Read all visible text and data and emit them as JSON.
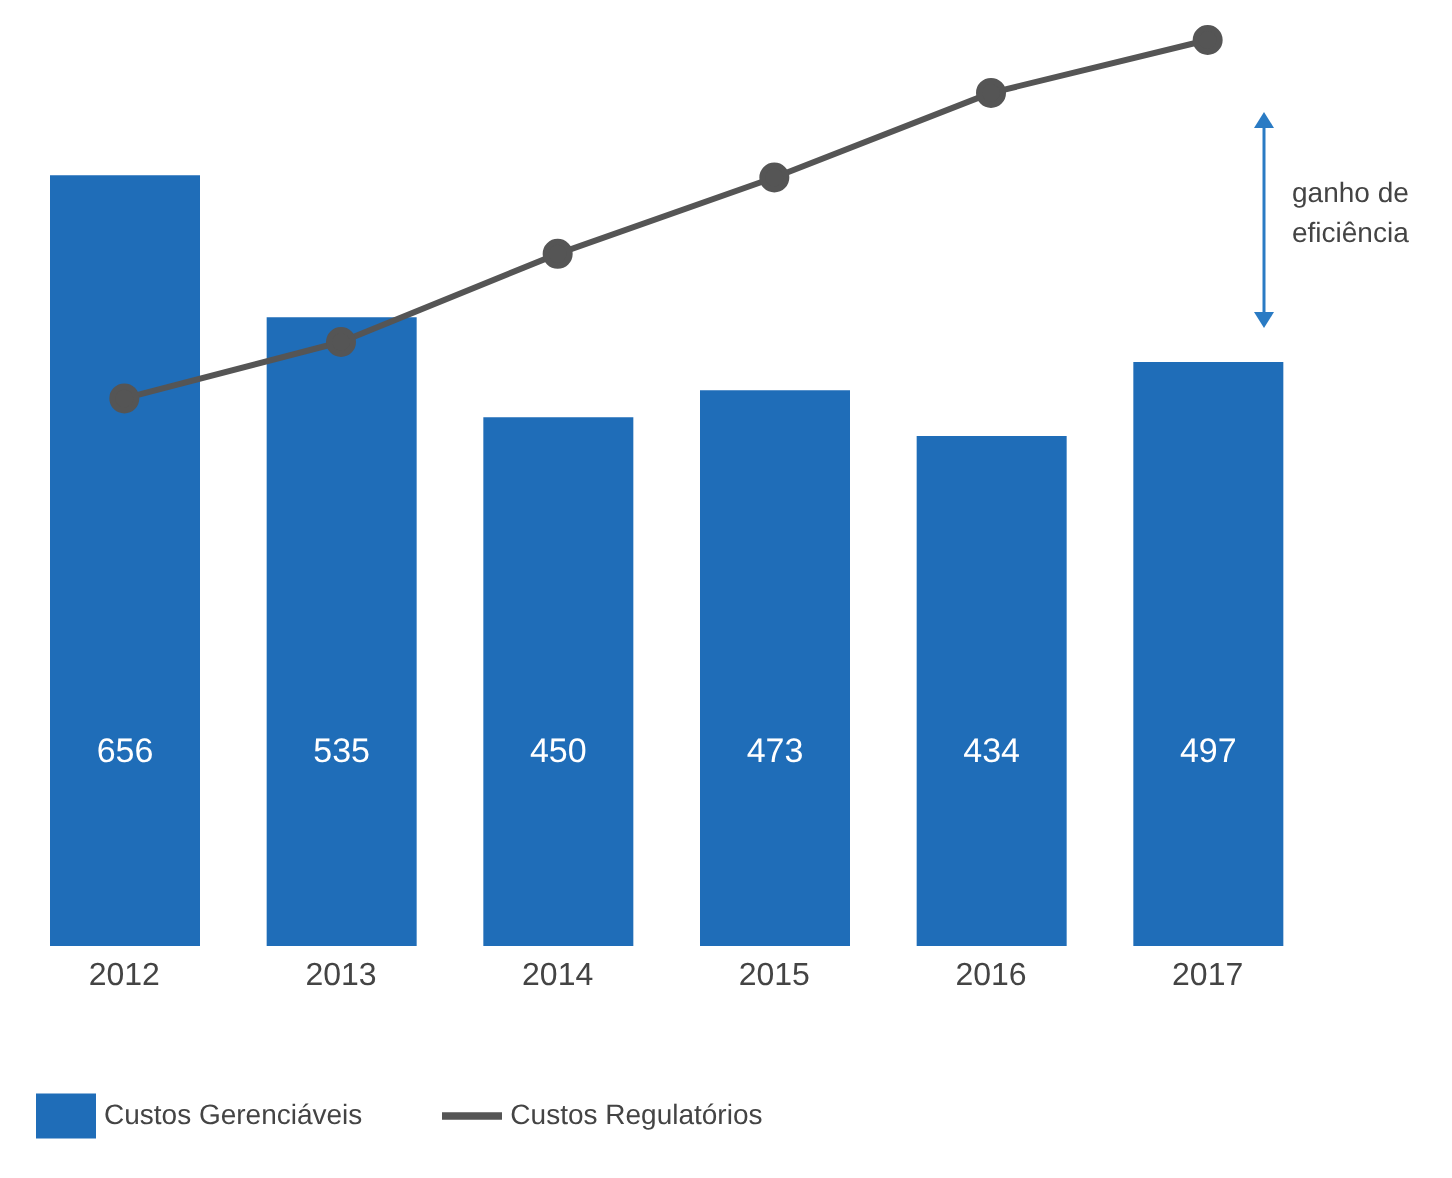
{
  "chart_data": {
    "type": "bar",
    "categories": [
      "2012",
      "2013",
      "2014",
      "2015",
      "2016",
      "2017"
    ],
    "series": [
      {
        "name": "Custos Gerenciáveis",
        "color": "#1f6db8",
        "values": [
          656,
          535,
          450,
          473,
          434,
          497
        ],
        "value_labels": [
          "656",
          "535",
          "450",
          "473",
          "434",
          "497"
        ]
      },
      {
        "name": "Custos Regulatórios",
        "type": "line",
        "color": "#555555",
        "values": [
          466,
          514,
          589,
          654,
          726,
          771
        ],
        "marker": "circle"
      }
    ],
    "tick_labels": "x",
    "grid": false,
    "legend": "bottom left",
    "annotations": [
      "ganho de eficiência"
    ]
  }
}
